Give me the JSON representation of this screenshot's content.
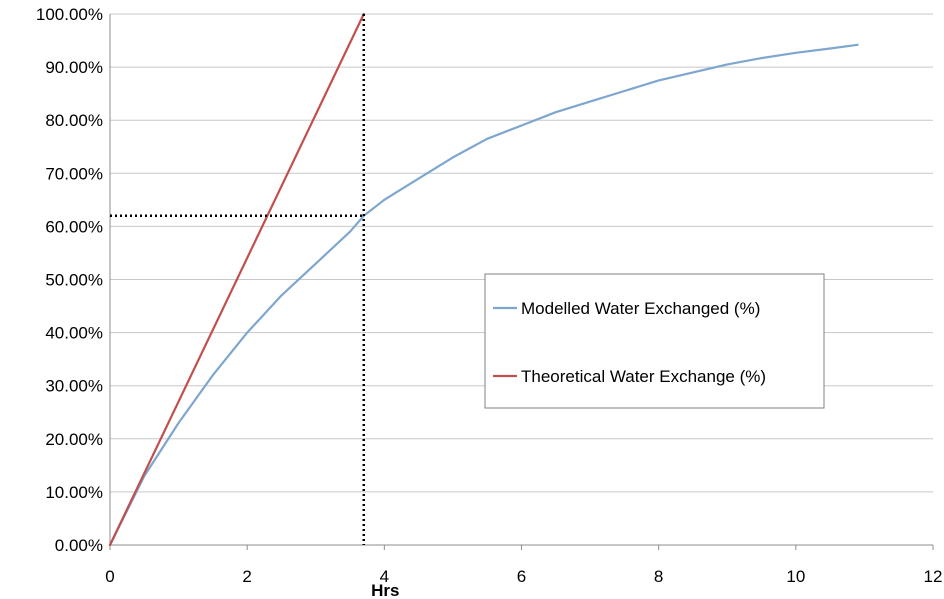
{
  "chart_data": {
    "type": "line",
    "xlabel": "Hrs",
    "ylabel": "",
    "title": "",
    "xlim": [
      0,
      12
    ],
    "ylim": [
      0,
      1
    ],
    "x_ticks": [
      "0",
      "2",
      "4",
      "6",
      "8",
      "10",
      "12"
    ],
    "y_ticks": [
      "0.00%",
      "10.00%",
      "20.00%",
      "30.00%",
      "40.00%",
      "50.00%",
      "60.00%",
      "70.00%",
      "80.00%",
      "90.00%",
      "100.00%"
    ],
    "grid": "horizontal",
    "legend_position": "center-right",
    "series": [
      {
        "name": "Modelled Water Exchanged (%)",
        "color": "#7ea6cf",
        "x": [
          0,
          0.5,
          1,
          1.5,
          2,
          2.5,
          3,
          3.5,
          3.7,
          4,
          4.5,
          5,
          5.5,
          6,
          6.5,
          7,
          7.5,
          8,
          8.5,
          9,
          9.5,
          10,
          10.5,
          10.9
        ],
        "y": [
          0,
          0.13,
          0.23,
          0.32,
          0.4,
          0.47,
          0.53,
          0.59,
          0.62,
          0.65,
          0.69,
          0.73,
          0.765,
          0.79,
          0.815,
          0.835,
          0.855,
          0.875,
          0.89,
          0.905,
          0.917,
          0.927,
          0.935,
          0.942
        ]
      },
      {
        "name": "Theoretical Water Exchange (%)",
        "color": "#c0504d",
        "x": [
          0,
          3.7
        ],
        "y": [
          0,
          1.0
        ]
      }
    ],
    "reference_lines": {
      "color": "#000000",
      "x": 3.7,
      "y": 0.62
    }
  }
}
